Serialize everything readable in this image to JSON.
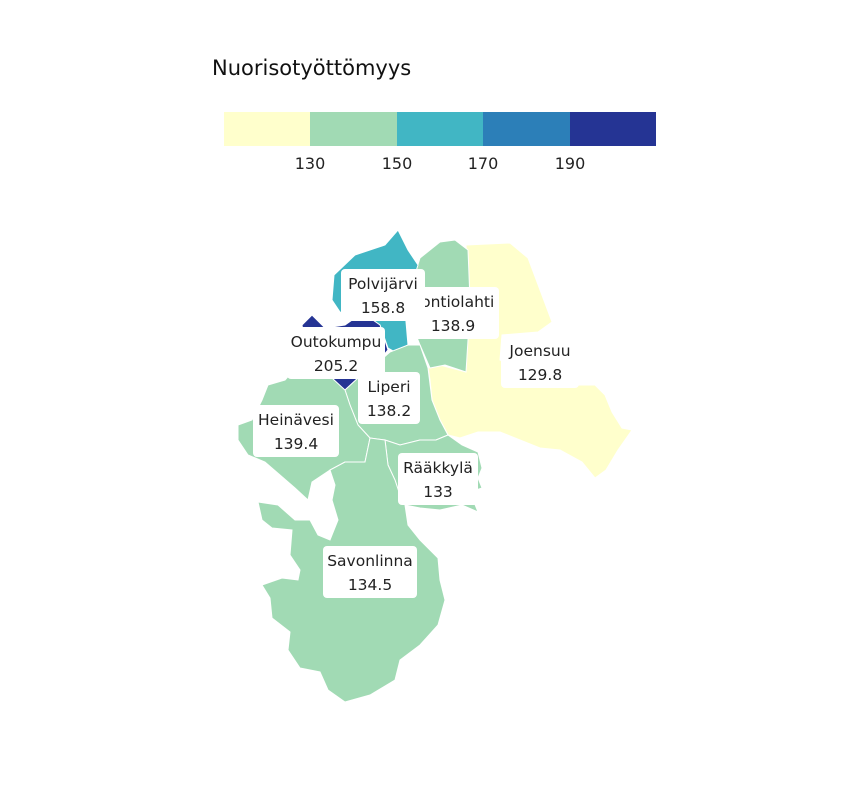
{
  "legend": {
    "title": "Nuorisotyöttömyys",
    "colors": [
      "#ffffcc",
      "#a1dab4",
      "#41b6c4",
      "#2c7fb8",
      "#253494"
    ],
    "ticks": [
      "130",
      "150",
      "170",
      "190"
    ]
  },
  "regions": [
    {
      "name": "Polvijärvi",
      "value": "158.8",
      "color": "#41b6c4"
    },
    {
      "name": "Kontiolahti",
      "value": "138.9",
      "color": "#a1dab4"
    },
    {
      "name": "Outokumpu",
      "value": "205.2",
      "color": "#253494"
    },
    {
      "name": "Joensuu",
      "value": "129.8",
      "color": "#ffffcc"
    },
    {
      "name": "Liperi",
      "value": "138.2",
      "color": "#a1dab4"
    },
    {
      "name": "Heinävesi",
      "value": "139.4",
      "color": "#a1dab4"
    },
    {
      "name": "Rääkkylä",
      "value": "133",
      "color": "#a1dab4"
    },
    {
      "name": "Savonlinna",
      "value": "134.5",
      "color": "#a1dab4"
    }
  ]
}
